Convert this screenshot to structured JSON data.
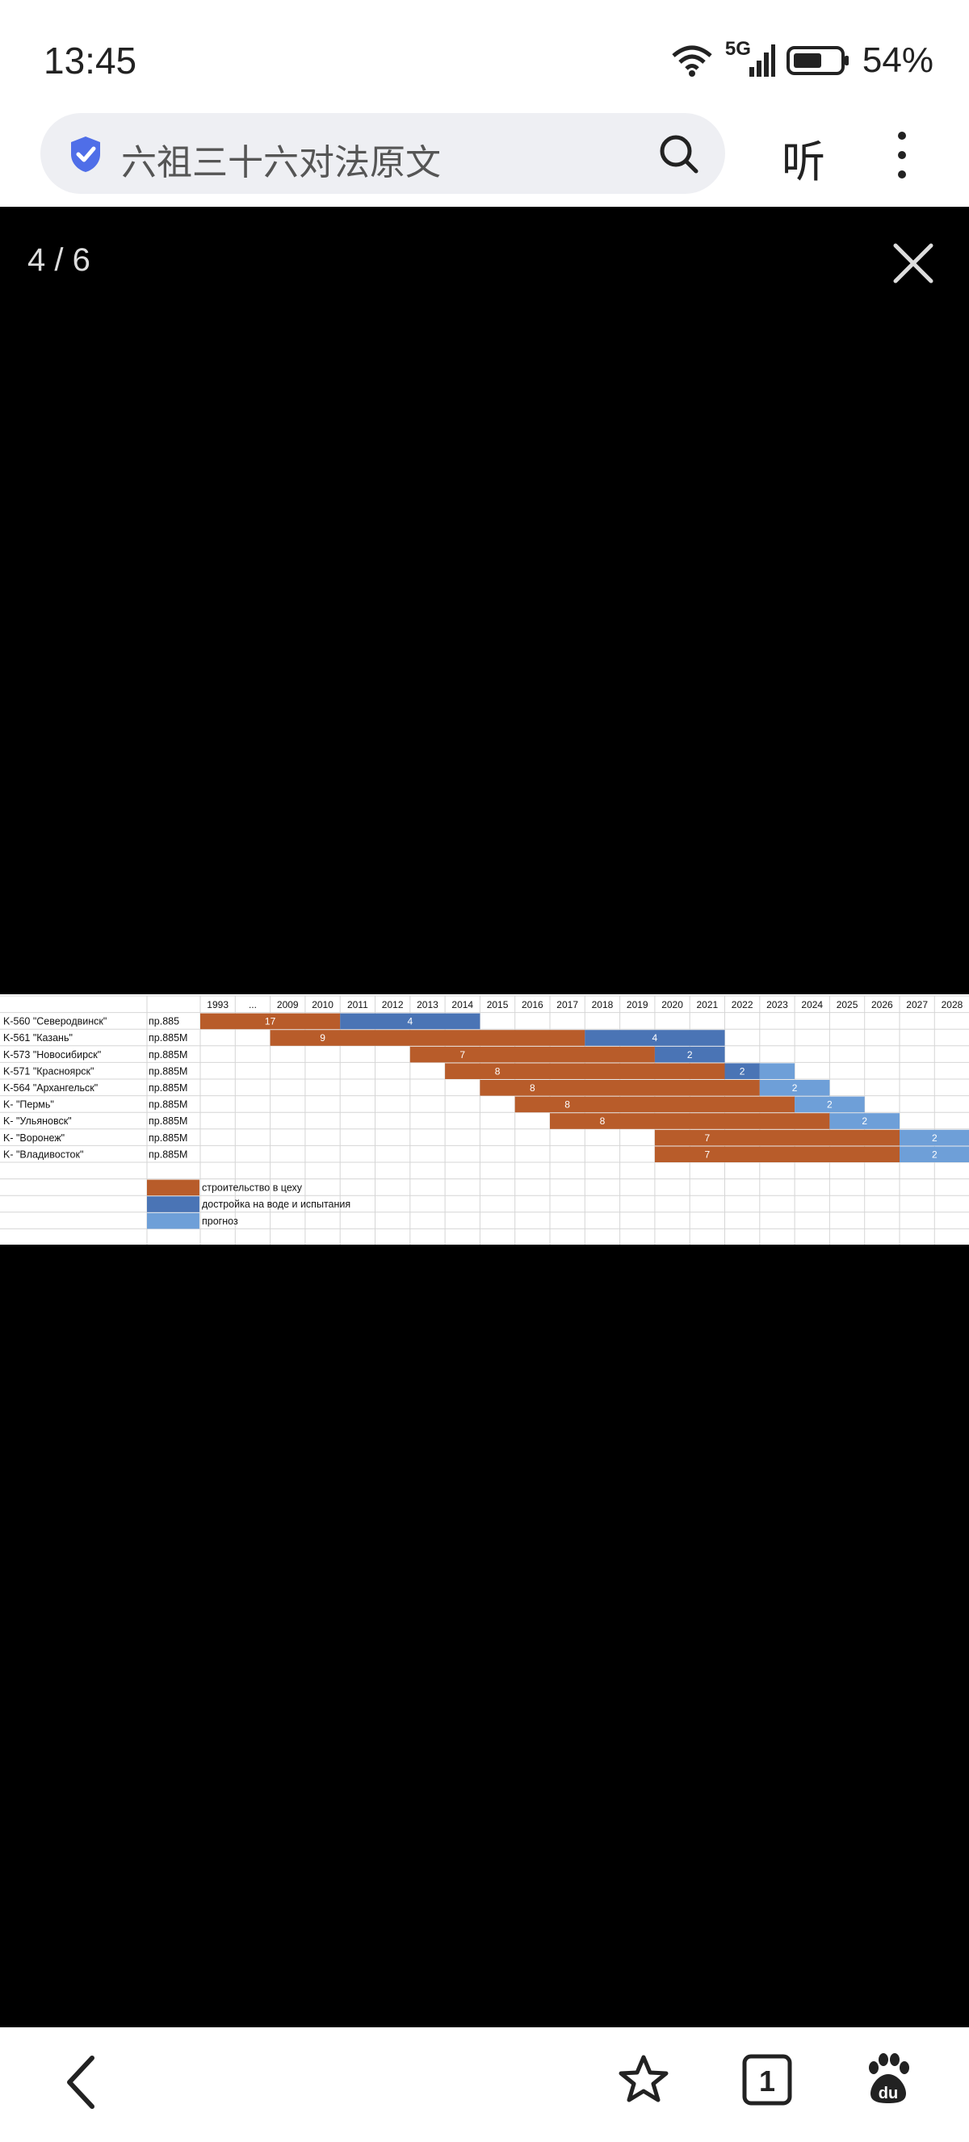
{
  "status_bar": {
    "time": "13:45",
    "network": "5G",
    "battery": "54%"
  },
  "address_bar": {
    "query": "六祖三十六对法原文",
    "listen_label": "听"
  },
  "viewer": {
    "counter": "4 / 6"
  },
  "chart_data": {
    "type": "table",
    "years": [
      "1993",
      "...",
      "2009",
      "2010",
      "2011",
      "2012",
      "2013",
      "2014",
      "2015",
      "2016",
      "2017",
      "2018",
      "2019",
      "2020",
      "2021",
      "2022",
      "2023",
      "2024",
      "2025",
      "2026",
      "2027",
      "2028"
    ],
    "rows": [
      {
        "name": "K-560 \"Северодвинск\"",
        "project": "пр.885",
        "segments": [
          {
            "kind": "construction",
            "start": 0,
            "end": 4,
            "label": "17"
          },
          {
            "kind": "outfitting",
            "start": 4,
            "end": 8,
            "label": "4"
          }
        ]
      },
      {
        "name": "K-561 \"Казань\"",
        "project": "пр.885M",
        "segments": [
          {
            "kind": "construction",
            "start": 2,
            "end": 11,
            "label": "9"
          },
          {
            "kind": "outfitting",
            "start": 11,
            "end": 15,
            "label": "4"
          }
        ]
      },
      {
        "name": "K-573 \"Новосибирск\"",
        "project": "пр.885M",
        "segments": [
          {
            "kind": "construction",
            "start": 6,
            "end": 13,
            "label": "7"
          },
          {
            "kind": "outfitting",
            "start": 13,
            "end": 15,
            "label": "2"
          }
        ]
      },
      {
        "name": "K-571 \"Красноярск\"",
        "project": "пр.885M",
        "segments": [
          {
            "kind": "construction",
            "start": 7,
            "end": 15,
            "label": "8"
          },
          {
            "kind": "outfitting",
            "start": 15,
            "end": 16,
            "label": "2"
          },
          {
            "kind": "forecast",
            "start": 16,
            "end": 17,
            "label": ""
          }
        ]
      },
      {
        "name": "K-564 \"Архангельск\"",
        "project": "пр.885M",
        "segments": [
          {
            "kind": "construction",
            "start": 8,
            "end": 16,
            "label": "8"
          },
          {
            "kind": "forecast",
            "start": 16,
            "end": 18,
            "label": "2"
          }
        ]
      },
      {
        "name": "K- \"Пермь\"",
        "project": "пр.885M",
        "segments": [
          {
            "kind": "construction",
            "start": 9,
            "end": 17,
            "label": "8"
          },
          {
            "kind": "forecast",
            "start": 17,
            "end": 19,
            "label": "2"
          }
        ]
      },
      {
        "name": "K- \"Ульяновск\"",
        "project": "пр.885M",
        "segments": [
          {
            "kind": "construction",
            "start": 10,
            "end": 18,
            "label": "8"
          },
          {
            "kind": "forecast",
            "start": 18,
            "end": 20,
            "label": "2"
          }
        ]
      },
      {
        "name": "K- \"Воронеж\"",
        "project": "пр.885M",
        "segments": [
          {
            "kind": "construction",
            "start": 13,
            "end": 20,
            "label": "7"
          },
          {
            "kind": "forecast",
            "start": 20,
            "end": 22,
            "label": "2"
          }
        ]
      },
      {
        "name": "K- \"Владивосток\"",
        "project": "пр.885M",
        "segments": [
          {
            "kind": "construction",
            "start": 13,
            "end": 20,
            "label": "7"
          },
          {
            "kind": "forecast",
            "start": 20,
            "end": 22,
            "label": "2"
          }
        ]
      }
    ],
    "legend": [
      {
        "kind": "construction",
        "label": "строительство в цеху",
        "color": "#b85c2a"
      },
      {
        "kind": "outfitting",
        "label": "достройка на воде и испытания",
        "color": "#4a74b5"
      },
      {
        "kind": "forecast",
        "label": "прогноз",
        "color": "#6e9fd8"
      }
    ]
  }
}
